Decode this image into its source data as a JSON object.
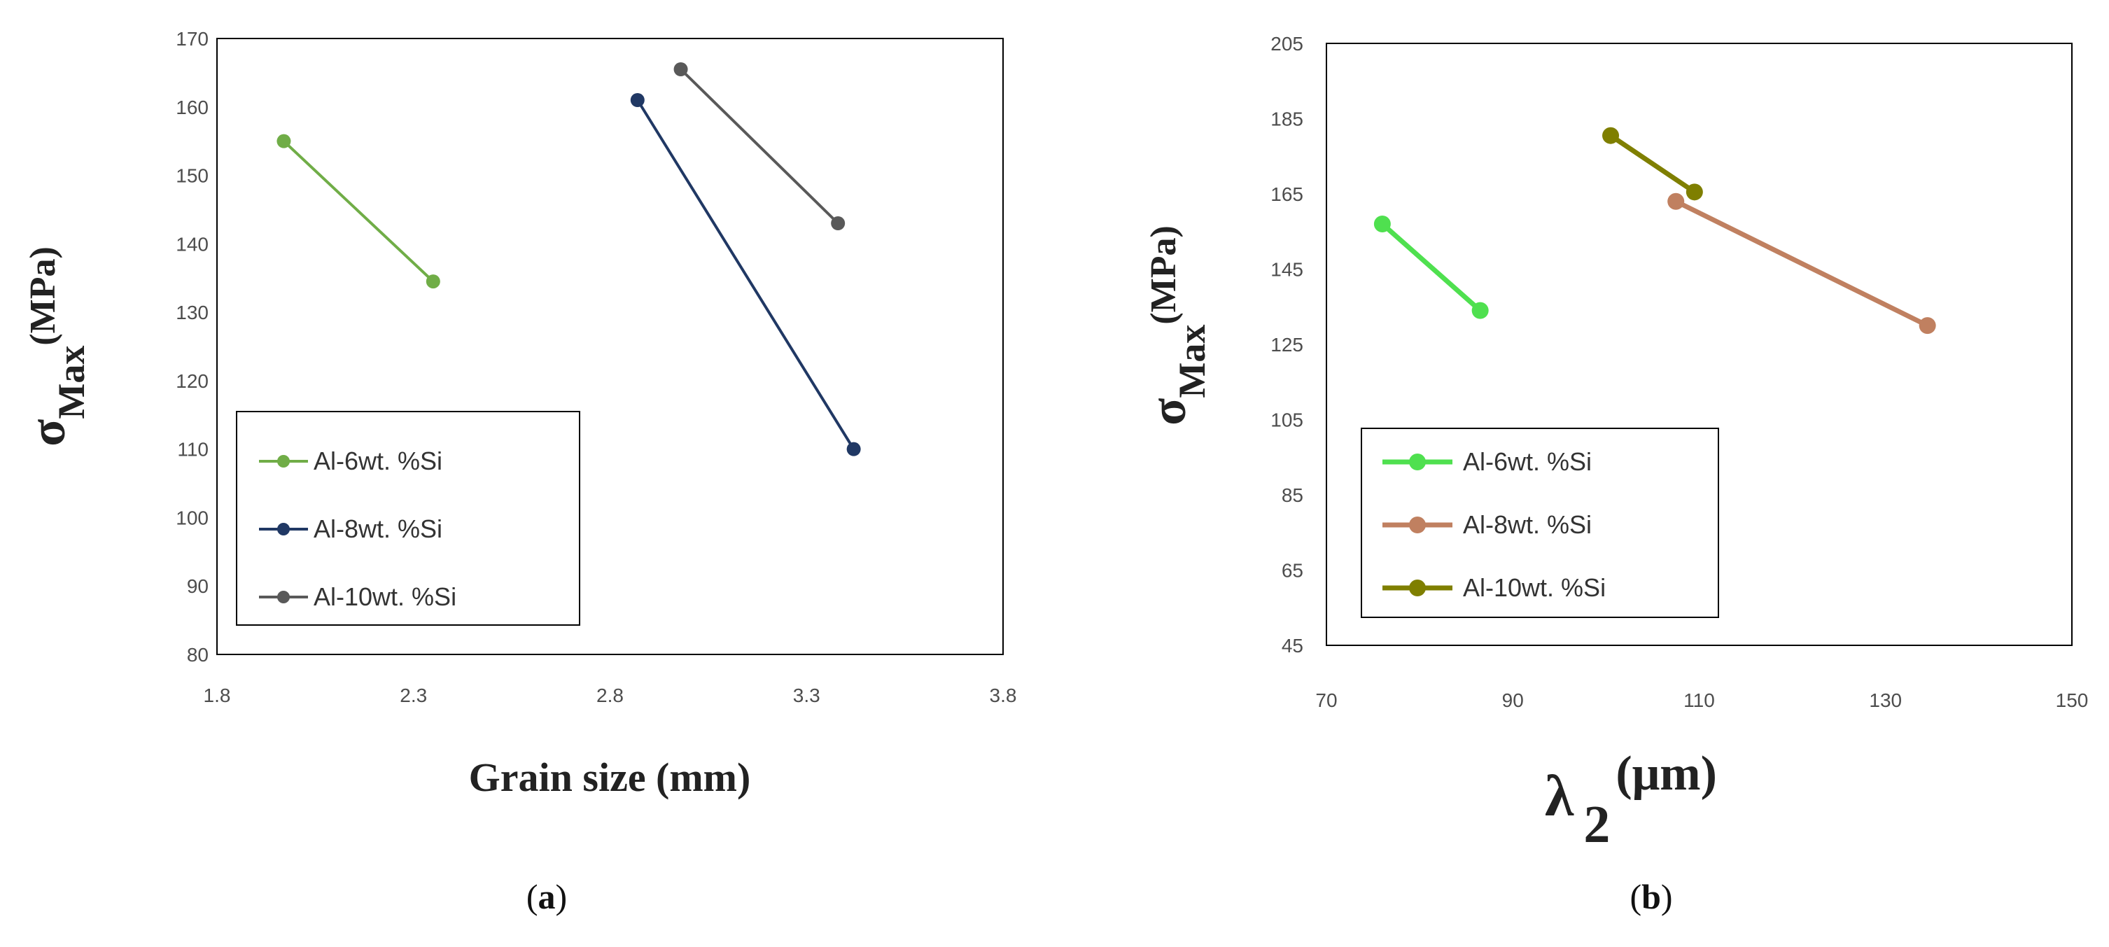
{
  "chart_data": [
    {
      "type": "line",
      "panel_label": "a",
      "xlabel": "Grain size (mm)",
      "ylabel": {
        "symbol": "σ",
        "subscript": "Max",
        "unit": "(MPa)"
      },
      "xlim": [
        1.8,
        3.8
      ],
      "ylim": [
        80,
        170
      ],
      "xticks": [
        "1.8",
        "2.3",
        "2.8",
        "3.3",
        "3.8"
      ],
      "yticks": [
        "80",
        "90",
        "100",
        "110",
        "120",
        "130",
        "140",
        "150",
        "160",
        "170"
      ],
      "legend_position": "bottom-left",
      "series": [
        {
          "name": "Al-6wt. %Si",
          "color": "#70ad47",
          "x": [
            1.97,
            2.35
          ],
          "y": [
            155,
            134.5
          ]
        },
        {
          "name": "Al-8wt. %Si",
          "color": "#203864",
          "x": [
            2.87,
            3.42
          ],
          "y": [
            161,
            110
          ]
        },
        {
          "name": "Al-10wt. %Si",
          "color": "#595959",
          "x": [
            2.98,
            3.38
          ],
          "y": [
            165.5,
            143
          ]
        }
      ]
    },
    {
      "type": "line",
      "panel_label": "b",
      "xlabel": {
        "symbol": "λ",
        "subscript": "2",
        "unit": "(μm)"
      },
      "ylabel": {
        "symbol": "σ",
        "subscript": "Max",
        "unit": "(MPa)"
      },
      "xlim": [
        70,
        150
      ],
      "ylim": [
        45,
        205
      ],
      "xticks": [
        "70",
        "90",
        "110",
        "130",
        "150"
      ],
      "yticks": [
        "45",
        "65",
        "85",
        "105",
        "125",
        "145",
        "165",
        "185",
        "205"
      ],
      "legend_position": "bottom-left",
      "series": [
        {
          "name": "Al-6wt. %Si",
          "color": "#4fe04f",
          "x": [
            76,
            86.5
          ],
          "y": [
            157,
            134
          ]
        },
        {
          "name": "Al-8wt. %Si",
          "color": "#c08060",
          "x": [
            107.5,
            134.5
          ],
          "y": [
            163,
            130
          ]
        },
        {
          "name": "Al-10wt. %Si",
          "color": "#7f7f00",
          "x": [
            100.5,
            109.5
          ],
          "y": [
            180.5,
            165.5
          ]
        }
      ]
    }
  ]
}
